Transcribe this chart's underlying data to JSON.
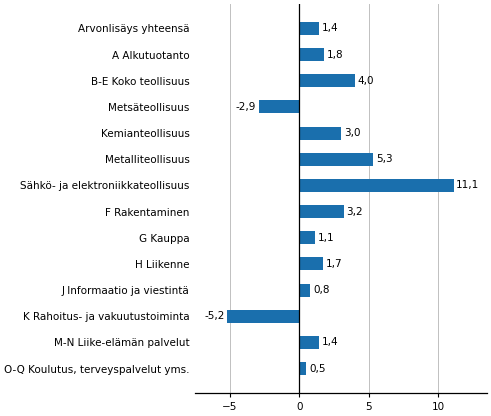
{
  "categories": [
    "Arvonlisäys yhteensä",
    "A Alkutuotanto",
    "B-E Koko teollisuus",
    "Metsäteollisuus",
    "Kemianteollisuus",
    "Metalliteollisuus",
    "Sähkö- ja elektroniikkateollisuus",
    "F Rakentaminen",
    "G Kauppa",
    "H Liikenne",
    "J Informaatio ja viestintä",
    "K Rahoitus- ja vakuutustoiminta",
    "M-N Liike-elämän palvelut",
    "O-Q Koulutus, terveyspalvelut yms."
  ],
  "values": [
    1.4,
    1.8,
    4.0,
    -2.9,
    3.0,
    5.3,
    11.1,
    3.2,
    1.1,
    1.7,
    0.8,
    -5.2,
    1.4,
    0.5
  ],
  "bar_color": "#1a6fad",
  "xlim": [
    -7.5,
    13.5
  ],
  "xticks": [
    -5,
    0,
    5,
    10
  ],
  "label_fontsize": 7.5,
  "value_fontsize": 7.5,
  "bar_height": 0.5,
  "background_color": "#ffffff"
}
